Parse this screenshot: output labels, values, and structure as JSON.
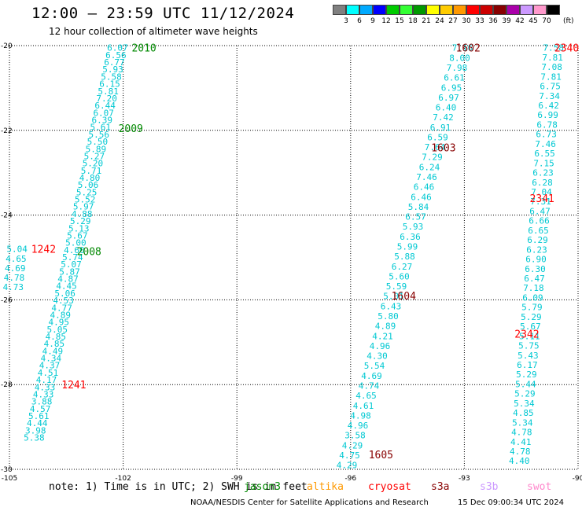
{
  "header": {
    "title": "12:00 — 23:59 UTC 11/12/2024",
    "subtitle": "12 hour collection of altimeter wave heights"
  },
  "legend": {
    "unit": "(ft)",
    "labels": [
      "3",
      "6",
      "9",
      "12",
      "15",
      "18",
      "21",
      "24",
      "27",
      "30",
      "33",
      "36",
      "39",
      "42",
      "45",
      "70"
    ],
    "colors": [
      "#808080",
      "#00ffff",
      "#00aaff",
      "#0000ff",
      "#00cc00",
      "#33ff33",
      "#009900",
      "#ffff00",
      "#ffcc00",
      "#ff9900",
      "#ff0000",
      "#cc0000",
      "#880000",
      "#aa00aa",
      "#cc99ff",
      "#ff99cc",
      "#000000"
    ]
  },
  "footer": {
    "note": "note: 1) Time is in UTC; 2) SWH is in feet",
    "satellites": [
      {
        "name": "jason3",
        "color": "#008800"
      },
      {
        "name": "altika",
        "color": "#ff9900"
      },
      {
        "name": "cryosat",
        "color": "#ff0000"
      },
      {
        "name": "s3a",
        "color": "#880000"
      },
      {
        "name": "s3b",
        "color": "#cc99ff"
      },
      {
        "name": "swot",
        "color": "#ff88cc"
      }
    ],
    "credit": "NOAA/NESDIS Center for Satellite Applications and Research",
    "timestamp": "15 Dec 09:00:34 UTC 2024"
  },
  "chart_data": {
    "type": "scatter",
    "title": "12:00 — 23:59 UTC 11/12/2024",
    "xlabel": "",
    "ylabel": "",
    "xlim": [
      -105,
      -90
    ],
    "ylim": [
      -30,
      -20
    ],
    "x_ticks": [
      "-105",
      "-102",
      "-99",
      "-96",
      "-93",
      "-90"
    ],
    "y_ticks": [
      "-20",
      "-22",
      "-24",
      "-26",
      "-28",
      "-30"
    ],
    "grid": true,
    "value_color": "#00c8d2",
    "tracks": [
      {
        "x_start": -102.15,
        "y_start": -20.05,
        "x_end": -104.35,
        "y_end": -29.25,
        "values": [
          "6.07",
          "6.56",
          "6.77",
          "5.93",
          "5.58",
          "6.15",
          "5.81",
          "7.20",
          "6.44",
          "6.07",
          "6.39",
          "5.61",
          "5.56",
          "5.50",
          "5.89",
          "5.27",
          "5.20",
          "5.71",
          "4.80",
          "5.06",
          "5.25",
          "5.52",
          "5.97",
          "4.88",
          "5.29",
          "5.13",
          "5.67",
          "5.00",
          "4.60",
          "5.74",
          "5.07",
          "5.87",
          "4.87",
          "4.45",
          "5.06",
          "4.53",
          "4.77",
          "4.89",
          "4.95",
          "5.05",
          "4.85",
          "4.85",
          "4.49",
          "4.34",
          "4.37",
          "4.51",
          "4.17",
          "4.33",
          "4.33",
          "3.88",
          "4.57",
          "5.61",
          "4.44",
          "3.98",
          "5.38"
        ]
      },
      {
        "x_start": -104.8,
        "y_start": -24.8,
        "x_end": -104.9,
        "y_end": -25.7,
        "values": [
          "5.04",
          "4.65",
          "4.69",
          "4.78",
          "4.73"
        ]
      },
      {
        "x_start": -93.05,
        "y_start": -20.05,
        "x_end": -96.1,
        "y_end": -29.9,
        "values": [
          "7.16",
          "8.00",
          "7.98",
          "6.61",
          "6.95",
          "6.97",
          "6.40",
          "7.42",
          "6.91",
          "6.59",
          "7.64",
          "7.29",
          "6.24",
          "7.46",
          "6.46",
          "6.46",
          "5.84",
          "6.57",
          "5.93",
          "6.36",
          "5.99",
          "5.88",
          "6.27",
          "5.60",
          "5.59",
          "5.01",
          "6.43",
          "5.80",
          "4.89",
          "4.21",
          "4.96",
          "4.30",
          "5.54",
          "4.69",
          "4.74",
          "4.65",
          "4.61",
          "4.98",
          "4.96",
          "3.58",
          "4.29",
          "4.75",
          "4.29"
        ]
      },
      {
        "x_start": -90.65,
        "y_start": -20.05,
        "x_end": -91.55,
        "y_end": -29.8,
        "values": [
          "7.58",
          "7.81",
          "7.08",
          "7.81",
          "6.75",
          "7.34",
          "6.42",
          "6.99",
          "6.78",
          "6.73",
          "7.46",
          "6.55",
          "7.15",
          "6.23",
          "6.28",
          "7.04",
          "7.31",
          "6.47",
          "6.66",
          "6.65",
          "6.29",
          "6.23",
          "6.90",
          "6.30",
          "6.47",
          "7.18",
          "6.09",
          "5.79",
          "5.29",
          "5.67",
          "5.11",
          "5.75",
          "5.43",
          "6.17",
          "5.29",
          "5.44",
          "5.29",
          "5.34",
          "4.85",
          "5.34",
          "4.78",
          "4.41",
          "4.78",
          "4.40"
        ]
      }
    ],
    "time_tags": [
      {
        "label": "2010",
        "lon": -101.45,
        "lat": -20.05,
        "color": "#008800"
      },
      {
        "label": "2009",
        "lon": -101.8,
        "lat": -21.95,
        "color": "#008800"
      },
      {
        "label": "2008",
        "lon": -102.9,
        "lat": -24.85,
        "color": "#008800"
      },
      {
        "label": "1242",
        "lon": -104.1,
        "lat": -24.8,
        "color": "#ff0000"
      },
      {
        "label": "1241",
        "lon": -103.3,
        "lat": -28.0,
        "color": "#ff0000"
      },
      {
        "label": "1602",
        "lon": -92.9,
        "lat": -20.05,
        "color": "#880000"
      },
      {
        "label": "1603",
        "lon": -93.55,
        "lat": -22.4,
        "color": "#880000"
      },
      {
        "label": "1604",
        "lon": -94.6,
        "lat": -25.9,
        "color": "#880000"
      },
      {
        "label": "1605",
        "lon": -95.2,
        "lat": -29.65,
        "color": "#880000"
      },
      {
        "label": "2340",
        "lon": -90.3,
        "lat": -20.05,
        "color": "#ff0000"
      },
      {
        "label": "2341",
        "lon": -90.95,
        "lat": -23.6,
        "color": "#ff0000"
      },
      {
        "label": "2342",
        "lon": -91.35,
        "lat": -26.8,
        "color": "#ff0000"
      }
    ]
  }
}
